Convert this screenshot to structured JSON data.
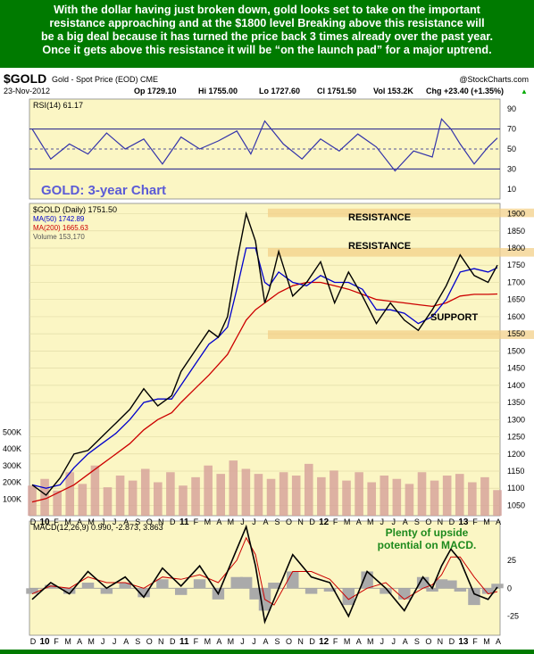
{
  "caption": {
    "lines": [
      "With the dollar having just broken down, gold looks set to take on the important",
      "resistance approaching and at the $1800 level Breaking above this resistance will",
      "be a big deal because it has turned the price back 3 times already over the past year.",
      "Once it gets above this resistance it will be “on the launch pad” for a major uptrend."
    ]
  },
  "header": {
    "symbol": "$GOLD",
    "description": "Gold - Spot Price (EOD) CME",
    "watermark": "@StockCharts.com",
    "date": "23-Nov-2012",
    "op": "Op 1729.10",
    "hi": "Hi 1755.00",
    "lo": "Lo 1727.60",
    "cl": "Cl 1751.50",
    "vol": "Vol 153.2K",
    "chg": "Chg +23.40 (+1.35%)",
    "chg_arrow": "▲"
  },
  "colors": {
    "panel_bg": "#fbf6c4",
    "price": "#000000",
    "ma50": "#0000cc",
    "ma200": "#cc0000",
    "volume": "#d6a09a",
    "rsi": "#3333aa",
    "band": "#f3d08a"
  },
  "annotations": {
    "chart_title": "GOLD: 3-year Chart",
    "resistance_top": "RESISTANCE",
    "resistance_mid": "RESISTANCE",
    "support": "SUPPORT",
    "macd_note_1": "Plenty of upside",
    "macd_note_2": "potential on MACD."
  },
  "chart_data": [
    {
      "type": "line",
      "panel": "rsi",
      "legend": "RSI(14) 61.17",
      "yticks": [
        10,
        30,
        50,
        70,
        90
      ],
      "ylim": [
        0,
        100
      ],
      "x": [
        0,
        0.04,
        0.08,
        0.12,
        0.16,
        0.2,
        0.24,
        0.28,
        0.32,
        0.36,
        0.4,
        0.44,
        0.47,
        0.5,
        0.54,
        0.58,
        0.62,
        0.66,
        0.7,
        0.74,
        0.78,
        0.82,
        0.86,
        0.88,
        0.9,
        0.92,
        0.95,
        0.98,
        1.0
      ],
      "values": [
        70,
        40,
        55,
        45,
        66,
        50,
        60,
        35,
        62,
        50,
        58,
        68,
        45,
        78,
        55,
        40,
        60,
        48,
        65,
        52,
        28,
        48,
        42,
        80,
        70,
        55,
        35,
        52,
        61
      ]
    },
    {
      "type": "line",
      "panel": "price",
      "legend": "$GOLD (Daily) 1751.50",
      "legend_ma50": "MA(50) 1742.89",
      "legend_ma200": "MA(200) 1665.63",
      "legend_volume": "Volume 153,170",
      "yticks": [
        1050,
        1100,
        1150,
        1200,
        1250,
        1300,
        1350,
        1400,
        1450,
        1500,
        1550,
        1600,
        1650,
        1700,
        1750,
        1800,
        1850,
        1900
      ],
      "ylim": [
        1020,
        1930
      ],
      "x": [
        0,
        0.03,
        0.06,
        0.09,
        0.12,
        0.15,
        0.18,
        0.21,
        0.24,
        0.27,
        0.3,
        0.32,
        0.35,
        0.38,
        0.4,
        0.42,
        0.44,
        0.46,
        0.48,
        0.5,
        0.51,
        0.53,
        0.56,
        0.59,
        0.62,
        0.65,
        0.68,
        0.71,
        0.74,
        0.77,
        0.8,
        0.83,
        0.86,
        0.89,
        0.92,
        0.95,
        0.98,
        1.0
      ],
      "values": [
        1110,
        1080,
        1130,
        1200,
        1210,
        1250,
        1290,
        1330,
        1390,
        1340,
        1370,
        1440,
        1500,
        1560,
        1540,
        1600,
        1760,
        1900,
        1820,
        1640,
        1680,
        1790,
        1660,
        1700,
        1760,
        1640,
        1730,
        1660,
        1580,
        1640,
        1590,
        1560,
        1620,
        1690,
        1780,
        1720,
        1700,
        1750
      ],
      "ma50": [
        1110,
        1100,
        1110,
        1160,
        1200,
        1230,
        1260,
        1300,
        1350,
        1360,
        1360,
        1400,
        1460,
        1520,
        1540,
        1570,
        1680,
        1800,
        1800,
        1700,
        1690,
        1730,
        1700,
        1690,
        1720,
        1700,
        1700,
        1680,
        1620,
        1620,
        1610,
        1580,
        1600,
        1650,
        1730,
        1740,
        1730,
        1743
      ],
      "ma200": [
        1060,
        1070,
        1090,
        1110,
        1140,
        1170,
        1200,
        1230,
        1270,
        1300,
        1320,
        1350,
        1390,
        1430,
        1460,
        1490,
        1540,
        1590,
        1620,
        1640,
        1650,
        1670,
        1690,
        1700,
        1700,
        1690,
        1680,
        1665,
        1650,
        1645,
        1640,
        1635,
        1630,
        1640,
        1660,
        1665,
        1665,
        1666
      ],
      "volume_ticks": [
        "100K",
        "200K",
        "300K",
        "400K",
        "500K"
      ],
      "volume_ylim": [
        0,
        560000
      ],
      "volume": [
        180000,
        220000,
        150000,
        260000,
        190000,
        300000,
        170000,
        240000,
        210000,
        280000,
        200000,
        260000,
        180000,
        230000,
        300000,
        250000,
        330000,
        280000,
        250000,
        220000,
        260000,
        240000,
        310000,
        230000,
        270000,
        210000,
        260000,
        200000,
        240000,
        220000,
        190000,
        260000,
        210000,
        240000,
        250000,
        200000,
        230000,
        153170
      ],
      "bands": [
        {
          "label": "RESISTANCE",
          "low": 1890,
          "high": 1915
        },
        {
          "label": "RESISTANCE",
          "low": 1775,
          "high": 1800
        },
        {
          "label": "SUPPORT",
          "low": 1535,
          "high": 1560
        }
      ]
    },
    {
      "type": "line",
      "panel": "macd",
      "legend": "MACD(12,26,9) 0.990, -2.873, 3.863",
      "yticks": [
        -25,
        0,
        25
      ],
      "ylim": [
        -42,
        60
      ],
      "x": [
        0,
        0.04,
        0.08,
        0.12,
        0.16,
        0.2,
        0.24,
        0.28,
        0.32,
        0.36,
        0.4,
        0.44,
        0.46,
        0.48,
        0.5,
        0.52,
        0.56,
        0.6,
        0.64,
        0.68,
        0.72,
        0.76,
        0.8,
        0.84,
        0.86,
        0.88,
        0.9,
        0.92,
        0.95,
        0.98,
        1.0
      ],
      "values": [
        -10,
        5,
        -5,
        15,
        0,
        10,
        -8,
        18,
        2,
        20,
        -5,
        35,
        55,
        20,
        -30,
        -10,
        30,
        10,
        5,
        -25,
        15,
        0,
        -20,
        10,
        0,
        20,
        35,
        25,
        -5,
        -10,
        1
      ],
      "signal": [
        -5,
        2,
        0,
        10,
        5,
        5,
        0,
        10,
        8,
        12,
        5,
        25,
        45,
        30,
        -10,
        -15,
        15,
        15,
        8,
        -10,
        0,
        5,
        -10,
        0,
        3,
        12,
        28,
        28,
        10,
        -5,
        -3
      ],
      "histogram": [
        -5,
        3,
        -5,
        5,
        -5,
        5,
        -8,
        8,
        -6,
        8,
        -10,
        10,
        10,
        -10,
        -20,
        5,
        15,
        -5,
        -3,
        -15,
        15,
        -5,
        -10,
        10,
        -3,
        8,
        7,
        -3,
        -15,
        -5,
        4
      ]
    }
  ],
  "xaxis_labels": [
    "D",
    "10",
    "F",
    "M",
    "A",
    "M",
    "J",
    "J",
    "A",
    "S",
    "O",
    "N",
    "D",
    "11",
    "F",
    "M",
    "A",
    "M",
    "J",
    "J",
    "A",
    "S",
    "O",
    "N",
    "D",
    "12",
    "F",
    "M",
    "A",
    "M",
    "J",
    "J",
    "A",
    "S",
    "O",
    "N",
    "D",
    "13",
    "F",
    "M",
    "A"
  ]
}
